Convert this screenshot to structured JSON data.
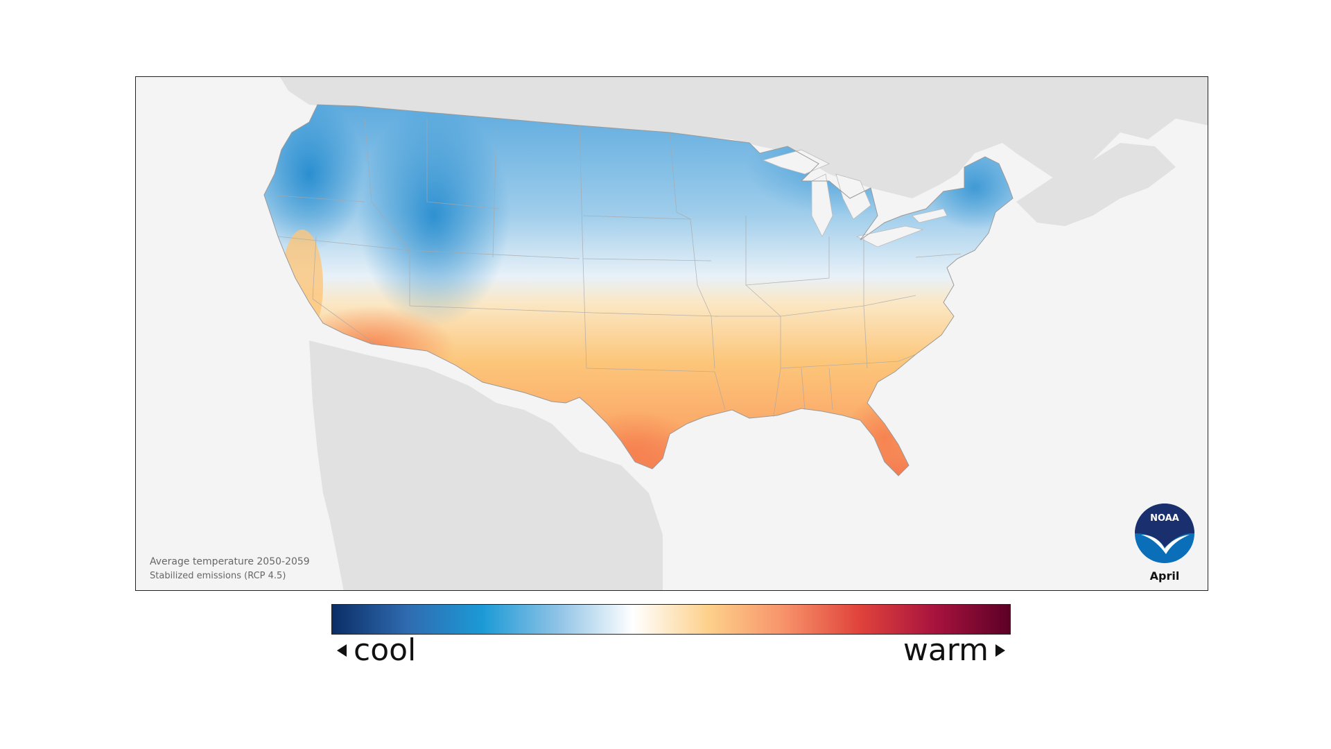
{
  "map": {
    "caption_line1": "Average temperature 2050-2059",
    "caption_line2": "Stabilized emissions (RCP 4.5)",
    "month": "April",
    "logo_text": "NOAA"
  },
  "legend": {
    "cool_label": "cool",
    "warm_label": "warm",
    "colors": [
      "#0b2e66",
      "#2f6bb0",
      "#1c9ad6",
      "#8fc3e6",
      "#ffffff",
      "#fdd08a",
      "#f7926a",
      "#e0433b",
      "#a8133e",
      "#5c0026"
    ]
  },
  "colors": {
    "land_background": "#e1e1e1",
    "ocean": "#f4f4f4",
    "noaa_blue": "#0a6fb8",
    "noaa_navy": "#1a2f6d"
  }
}
